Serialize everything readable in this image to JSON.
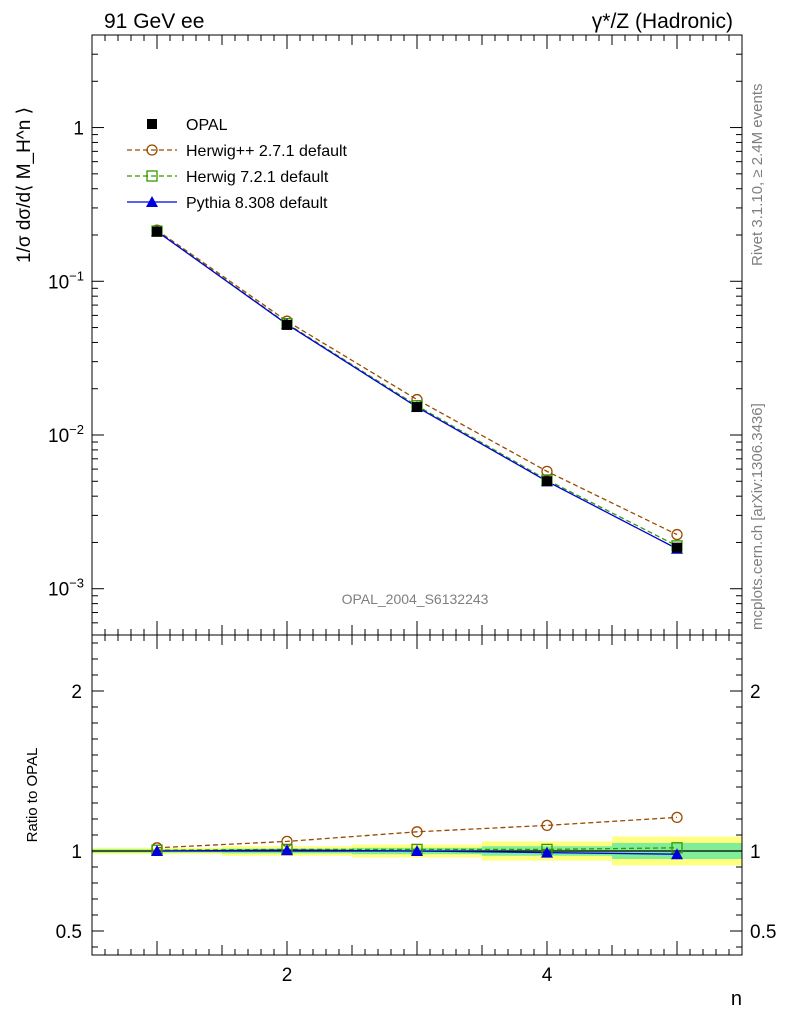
{
  "header": {
    "left": "91 GeV ee",
    "right": "γ*/Z (Hadronic)"
  },
  "side_text": {
    "rivet": "Rivet 3.1.10, ≥ 2.4M events",
    "site": "mcplots.cern.ch [arXiv:1306.3436]"
  },
  "watermark": "OPAL_2004_S6132243",
  "colors": {
    "opal": "#000000",
    "herwigpp": "#994c00",
    "herwig7": "#339900",
    "pythia": "#0000dd",
    "band_yellow": "#ffff80",
    "band_green": "#80ee99"
  },
  "chart_data": [
    {
      "type": "line",
      "panel": "main",
      "ylabel": "1/σ dσ/d⟨ M_H^n ⟩",
      "xlim": [
        0.5,
        5.5
      ],
      "ylim": [
        0.0005,
        4
      ],
      "yscale": "log",
      "ytick_labels": [
        "1",
        "10−1",
        "10−2",
        "10−3"
      ],
      "x": [
        1,
        2,
        3,
        4,
        5
      ],
      "legend_placement": "top-left",
      "series": [
        {
          "name": "OPAL",
          "values": [
            0.21,
            0.052,
            0.0152,
            0.005,
            0.00185
          ],
          "marker": "filled-square"
        },
        {
          "name": "Herwig++ 2.7.1 default",
          "values": [
            0.215,
            0.055,
            0.017,
            0.0058,
            0.00225
          ],
          "marker": "open-circle",
          "dash": true
        },
        {
          "name": "Herwig 7.2.1 default",
          "values": [
            0.212,
            0.053,
            0.0155,
            0.0051,
            0.0019
          ],
          "marker": "open-square",
          "dash": true
        },
        {
          "name": "Pythia 8.308 default",
          "values": [
            0.211,
            0.0525,
            0.0152,
            0.005,
            0.00182
          ],
          "marker": "filled-triangle"
        }
      ]
    },
    {
      "type": "line",
      "panel": "ratio",
      "ylabel": "Ratio to OPAL",
      "xlabel": "n",
      "xlim": [
        0.5,
        5.5
      ],
      "ylim": [
        0.35,
        2.35
      ],
      "ytick_labels": [
        "0.5",
        "1",
        "2"
      ],
      "xtick_labels": [
        "2",
        "4"
      ],
      "x": [
        1,
        2,
        3,
        4,
        5
      ],
      "bands": {
        "edges": [
          0.5,
          1.5,
          2.5,
          3.5,
          4.5,
          5.5
        ],
        "green_halfwidth": [
          0.01,
          0.015,
          0.02,
          0.03,
          0.05
        ],
        "yellow_halfwidth": [
          0.02,
          0.03,
          0.04,
          0.06,
          0.09
        ]
      },
      "series": [
        {
          "name": "Herwig++ 2.7.1 default",
          "values": [
            1.02,
            1.06,
            1.12,
            1.16,
            1.21
          ]
        },
        {
          "name": "Herwig 7.2.1 default",
          "values": [
            1.005,
            1.01,
            1.01,
            1.01,
            1.02
          ]
        },
        {
          "name": "Pythia 8.308 default",
          "values": [
            1.0,
            1.005,
            1.0,
            0.99,
            0.98
          ]
        }
      ]
    }
  ]
}
